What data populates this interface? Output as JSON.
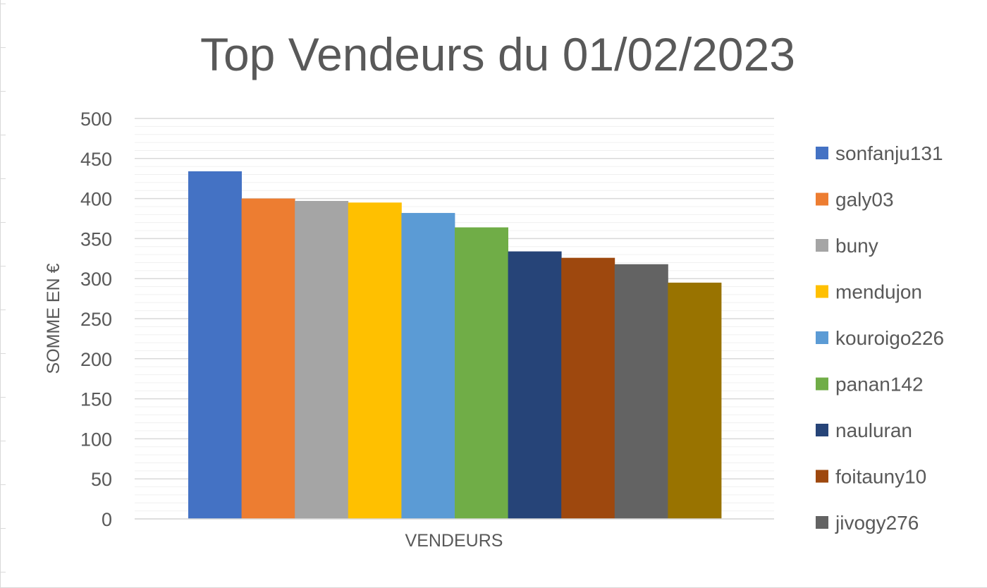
{
  "chart_data": {
    "type": "bar",
    "title": "Top Vendeurs du 01/02/2023",
    "xlabel": "VENDEURS",
    "ylabel": "SOMME EN €",
    "ylim": [
      0,
      500
    ],
    "yticks": [
      0,
      50,
      100,
      150,
      200,
      250,
      300,
      350,
      400,
      450,
      500
    ],
    "grid": true,
    "legend_position": "right",
    "series": [
      {
        "name": "sonfanju131",
        "value": 434,
        "color": "#4472C4"
      },
      {
        "name": "galy03",
        "value": 400,
        "color": "#ED7D31"
      },
      {
        "name": "buny",
        "value": 397,
        "color": "#A5A5A5"
      },
      {
        "name": "mendujon",
        "value": 395,
        "color": "#FFC000"
      },
      {
        "name": "kouroigo226",
        "value": 382,
        "color": "#5B9BD5"
      },
      {
        "name": "panan142",
        "value": 364,
        "color": "#70AD47"
      },
      {
        "name": "nauluran",
        "value": 334,
        "color": "#264478"
      },
      {
        "name": "foitauny10",
        "value": 326,
        "color": "#9E480E"
      },
      {
        "name": "jivogy276",
        "value": 318,
        "color": "#636363"
      },
      {
        "name": "",
        "value": 295,
        "color": "#997300"
      }
    ]
  }
}
